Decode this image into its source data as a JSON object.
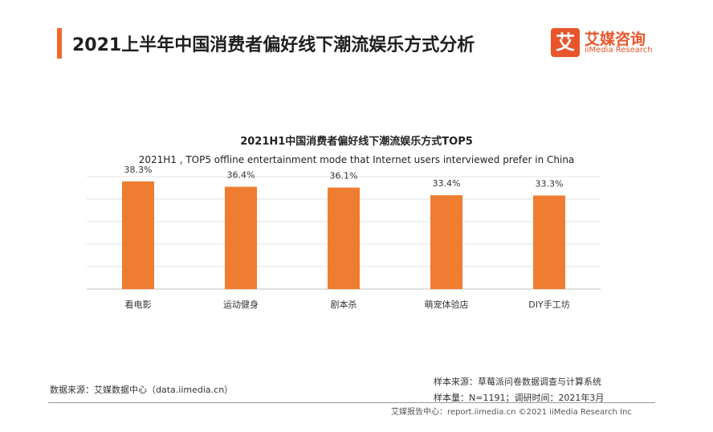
{
  "header": {
    "title": "2021上半年中国消费者偏好线下潮流娱乐方式分析",
    "accent_color": "#f0692e"
  },
  "logo": {
    "mark": "艾",
    "name_cn": "艾媒咨询",
    "name_en": "iiMedia Research",
    "color": "#e8552a"
  },
  "chart_data": {
    "type": "bar",
    "title": "2021H1中国消费者偏好线下潮流娱乐方式TOP5",
    "subtitle": "2021H1 , TOP5 offline entertainment mode that Internet users interviewed prefer in China",
    "categories": [
      "看电影",
      "运动健身",
      "剧本杀",
      "萌宠体验店",
      "DIY手工坊"
    ],
    "values": [
      38.3,
      36.4,
      36.1,
      33.4,
      33.3
    ],
    "value_labels": [
      "38.3%",
      "36.4%",
      "36.1%",
      "33.4%",
      "33.3%"
    ],
    "bar_color": "#ee7d31",
    "ylim": [
      0,
      40
    ],
    "grid": true,
    "xlabel": "",
    "ylabel": ""
  },
  "footer": {
    "data_source": "数据来源：艾媒数据中心（data.iimedia.cn）",
    "sample_source": "样本来源：草莓派问卷数据调查与计算系统",
    "sample_size": "样本量：N=1191；调研时间：2021年3月",
    "copyright": "艾媒报告中心：report.iimedia.cn  ©2021  iiMedia Research  Inc"
  }
}
